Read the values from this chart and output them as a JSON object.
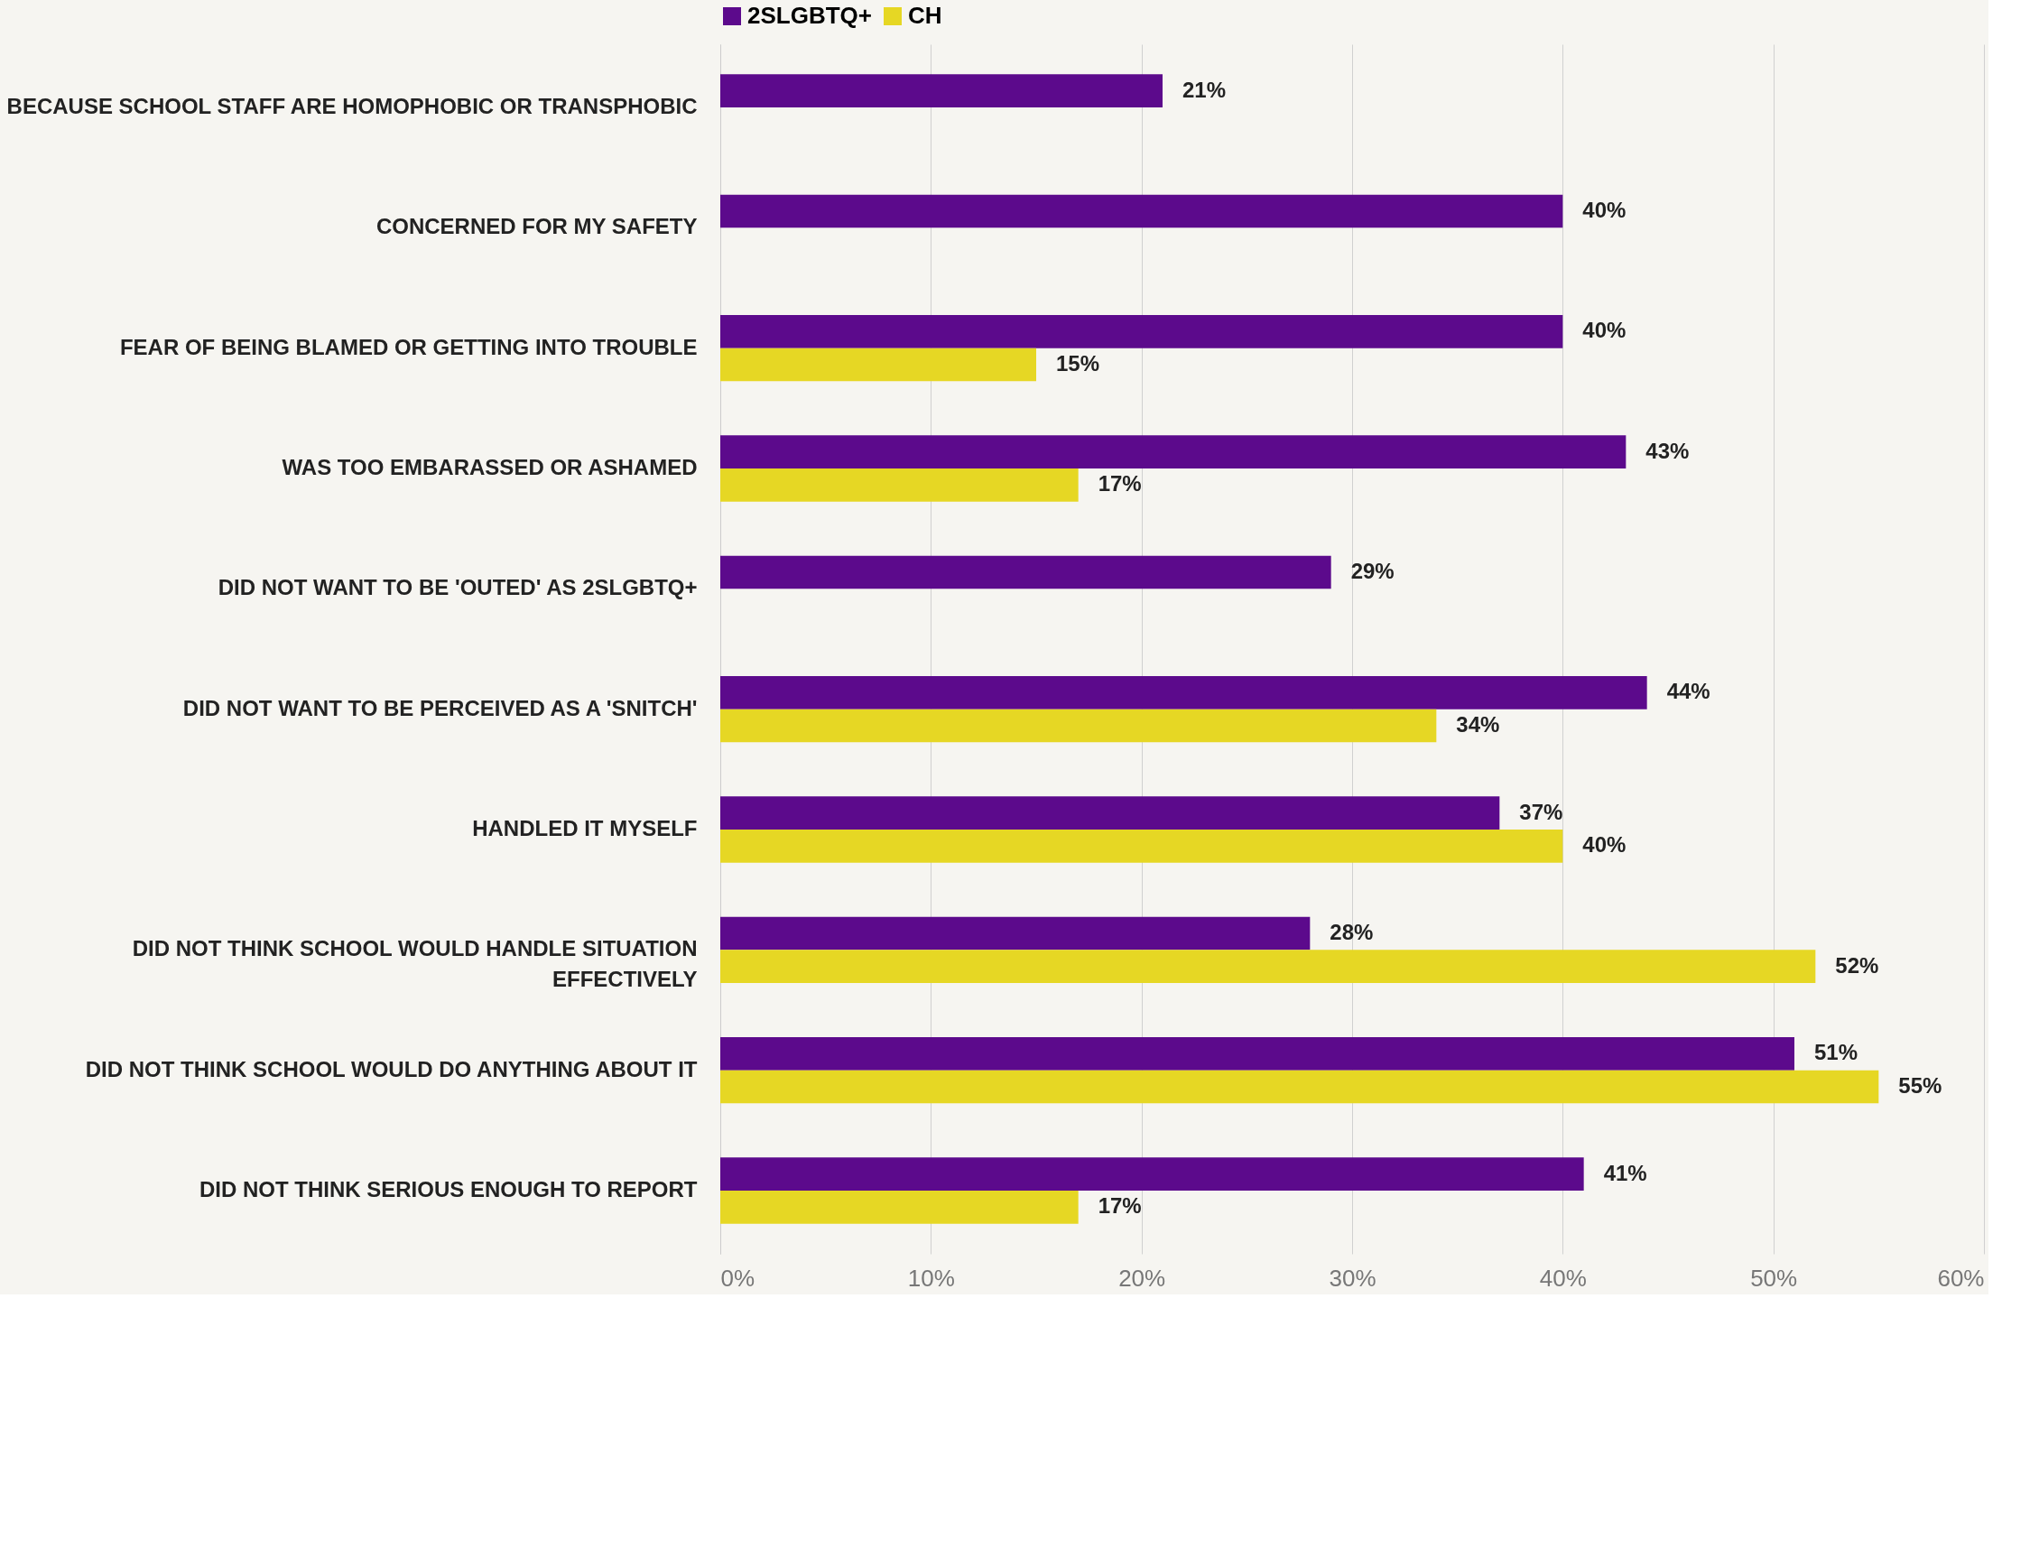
{
  "chart_data": {
    "type": "bar",
    "orientation": "horizontal",
    "categories": [
      "BECAUSE SCHOOL STAFF ARE HOMOPHOBIC OR TRANSPHOBIC",
      "CONCERNED FOR MY SAFETY",
      "FEAR OF BEING BLAMED OR GETTING INTO TROUBLE",
      "WAS TOO EMBARASSED OR ASHAMED",
      "DID NOT WANT TO BE 'OUTED' AS 2SLGBTQ+",
      "DID NOT WANT TO BE PERCEIVED AS A 'SNITCH'",
      "HANDLED IT MYSELF",
      "DID NOT THINK SCHOOL WOULD HANDLE SITUATION EFFECTIVELY",
      "DID NOT THINK SCHOOL WOULD DO ANYTHING ABOUT IT",
      "DID NOT THINK SERIOUS ENOUGH TO REPORT"
    ],
    "series": [
      {
        "name": "2SLGBTQ+",
        "color": "#5c0a8c",
        "values": [
          21,
          40,
          40,
          43,
          29,
          44,
          37,
          28,
          51,
          41
        ],
        "value_labels": [
          "21%",
          "40%",
          "40%",
          "43%",
          "29%",
          "44%",
          "37%",
          "28%",
          "51%",
          "41%"
        ]
      },
      {
        "name": "CH",
        "color": "#e6d724",
        "values": [
          null,
          null,
          15,
          17,
          null,
          34,
          40,
          52,
          55,
          17
        ],
        "value_labels": [
          null,
          null,
          "15%",
          "17%",
          null,
          "34%",
          "40%",
          "52%",
          "55%",
          "17%"
        ]
      }
    ],
    "xlim": [
      0,
      60
    ],
    "xticks": [
      {
        "value": 0,
        "label": "0%"
      },
      {
        "value": 10,
        "label": "10%"
      },
      {
        "value": 20,
        "label": "20%"
      },
      {
        "value": 30,
        "label": "30%"
      },
      {
        "value": 40,
        "label": "40%"
      },
      {
        "value": 50,
        "label": "50%"
      },
      {
        "value": 60,
        "label": "60%"
      }
    ],
    "grid": "x",
    "legend": "top"
  }
}
